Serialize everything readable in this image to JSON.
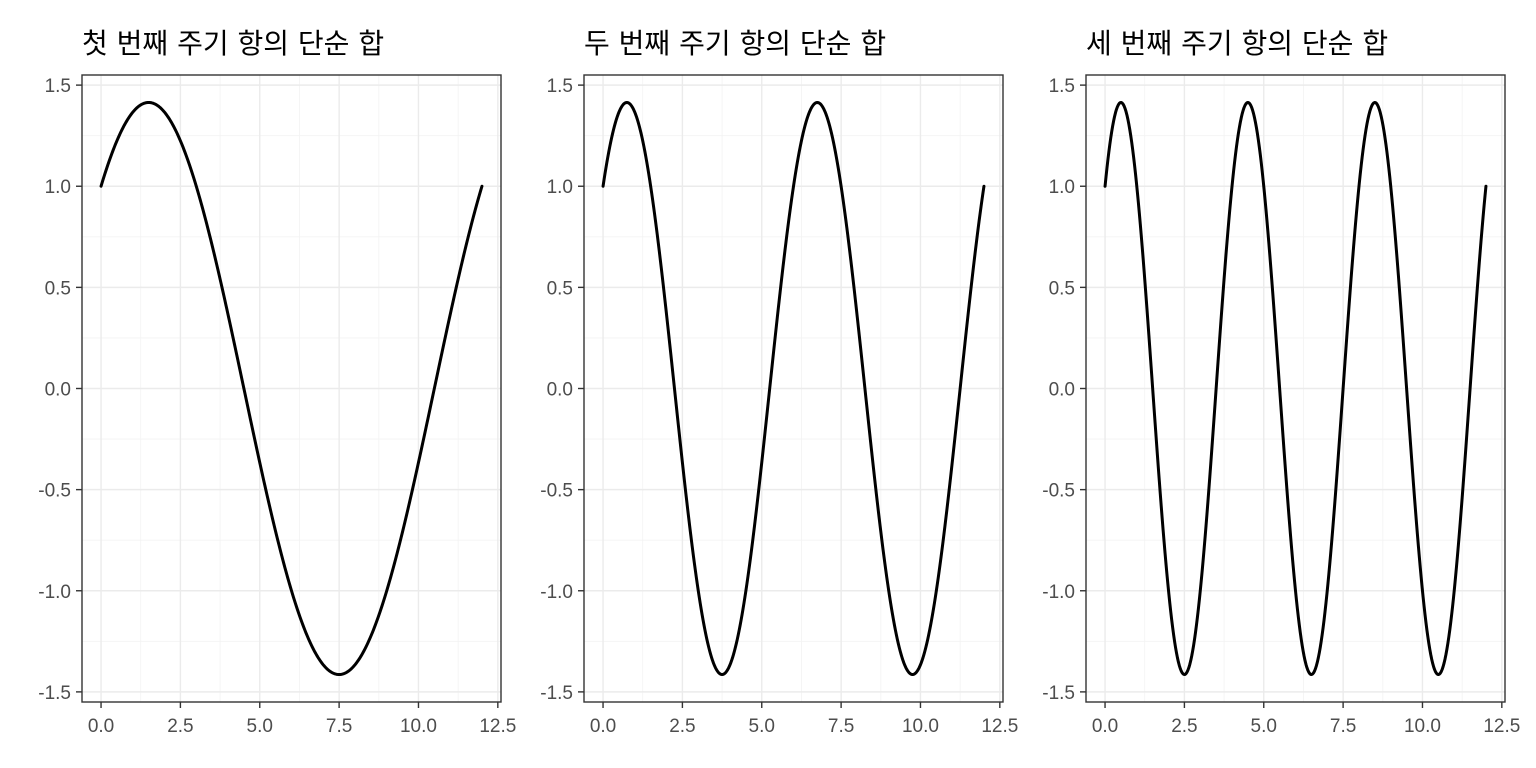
{
  "chart_data": [
    {
      "type": "line",
      "title": "첫 번째 주기 항의 단순 합",
      "xlabel": "",
      "ylabel": "",
      "xlim": [
        0,
        12
      ],
      "ylim": [
        -1.5,
        1.5
      ],
      "x_ticks": [
        "0.0",
        "2.5",
        "5.0",
        "7.5",
        "10.0",
        "12.5"
      ],
      "y_ticks": [
        "1.5",
        "1.0",
        "0.5",
        "0.0",
        "-0.5",
        "-1.0",
        "-1.5"
      ],
      "grid": true,
      "period": 12,
      "series": [
        {
          "x": [
            0,
            0.5,
            1,
            1.5,
            2,
            2.5,
            3,
            3.5,
            4,
            4.5,
            5,
            5.5,
            6,
            6.5,
            7,
            7.5,
            8,
            8.5,
            9,
            9.5,
            10,
            10.5,
            11,
            11.5,
            12
          ],
          "values": [
            1.0,
            1.225,
            1.366,
            1.414,
            1.366,
            1.225,
            1.0,
            0.707,
            0.366,
            0.0,
            -0.366,
            -0.707,
            -1.0,
            -1.225,
            -1.366,
            -1.414,
            -1.366,
            -1.225,
            -1.0,
            -0.707,
            -0.366,
            0.0,
            0.366,
            0.707,
            1.0
          ]
        }
      ]
    },
    {
      "type": "line",
      "title": "두 번째 주기 항의 단순 합",
      "xlabel": "",
      "ylabel": "",
      "xlim": [
        0,
        12
      ],
      "ylim": [
        -1.5,
        1.5
      ],
      "x_ticks": [
        "0.0",
        "2.5",
        "5.0",
        "7.5",
        "10.0",
        "12.5"
      ],
      "y_ticks": [
        "1.5",
        "1.0",
        "0.5",
        "0.0",
        "-0.5",
        "-1.0",
        "-1.5"
      ],
      "grid": true,
      "period": 6,
      "series": [
        {
          "x": [
            0,
            0.75,
            1.5,
            2.25,
            3,
            3.75,
            4.5,
            5.25,
            6,
            6.75,
            7.5,
            8.25,
            9,
            9.75,
            10.5,
            11.25,
            12
          ],
          "values": [
            1.0,
            1.414,
            1.0,
            0.0,
            -1.0,
            -1.414,
            -1.0,
            0.0,
            1.0,
            1.414,
            1.0,
            0.0,
            -1.0,
            -1.414,
            -1.0,
            0.0,
            1.0
          ]
        }
      ]
    },
    {
      "type": "line",
      "title": "세 번째 주기 항의 단순 합",
      "xlabel": "",
      "ylabel": "",
      "xlim": [
        0,
        12
      ],
      "ylim": [
        -1.5,
        1.5
      ],
      "x_ticks": [
        "0.0",
        "2.5",
        "5.0",
        "7.5",
        "10.0",
        "12.5"
      ],
      "y_ticks": [
        "1.5",
        "1.0",
        "0.5",
        "0.0",
        "-0.5",
        "-1.0",
        "-1.5"
      ],
      "grid": true,
      "period": 4,
      "series": [
        {
          "x": [
            0,
            0.5,
            1,
            1.5,
            2,
            2.5,
            3,
            3.5,
            4,
            4.5,
            5,
            5.5,
            6,
            6.5,
            7,
            7.5,
            8,
            8.5,
            9,
            9.5,
            10,
            10.5,
            11,
            11.5,
            12
          ],
          "values": [
            1.0,
            1.414,
            1.0,
            0.0,
            -1.0,
            -1.414,
            -1.0,
            0.0,
            1.0,
            1.414,
            1.0,
            0.0,
            -1.0,
            -1.414,
            -1.0,
            0.0,
            1.0,
            1.414,
            1.0,
            0.0,
            -1.0,
            -1.414,
            -1.0,
            0.0,
            1.0
          ]
        }
      ]
    }
  ]
}
